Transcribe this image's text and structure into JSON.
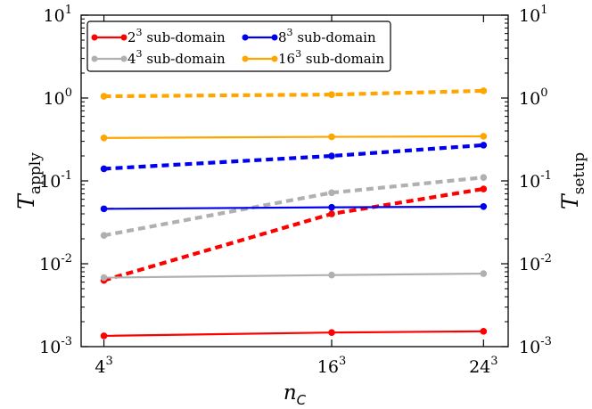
{
  "chart_data": {
    "type": "line",
    "x_categories": [
      "4",
      "16",
      "24"
    ],
    "x_values": [
      4,
      16,
      24
    ],
    "x_exponent": "3",
    "xlabel": {
      "base": "n",
      "subscript": "C"
    },
    "ylabel_left": {
      "base": "T",
      "subscript": "apply"
    },
    "ylabel_right": {
      "base": "T",
      "subscript": "setup"
    },
    "yscale": "log",
    "ylim": [
      0.001,
      10
    ],
    "y_ticks": [
      {
        "base": "10",
        "exp": "1"
      },
      {
        "base": "10",
        "exp": "0"
      },
      {
        "base": "10",
        "exp": "-1"
      },
      {
        "base": "10",
        "exp": "-2"
      },
      {
        "base": "10",
        "exp": "-3"
      }
    ],
    "legend_position": "top-left",
    "series": [
      {
        "name": "2³ sub-domain",
        "label_base": "2",
        "label_exp": "3",
        "label_rest": " sub-domain",
        "color": "#ff0000",
        "apply": [
          0.00135,
          0.00148,
          0.00153
        ],
        "setup": [
          0.0063,
          0.04,
          0.08
        ]
      },
      {
        "name": "4³ sub-domain",
        "label_base": "4",
        "label_exp": "3",
        "label_rest": " sub-domain",
        "color": "#b0b0b0",
        "apply": [
          0.0068,
          0.0073,
          0.0076
        ],
        "setup": [
          0.022,
          0.072,
          0.11
        ]
      },
      {
        "name": "8³ sub-domain",
        "label_base": "8",
        "label_exp": "3",
        "label_rest": " sub-domain",
        "color": "#0000ee",
        "apply": [
          0.046,
          0.048,
          0.049
        ],
        "setup": [
          0.14,
          0.2,
          0.27
        ]
      },
      {
        "name": "16³ sub-domain",
        "label_base": "16",
        "label_exp": "3",
        "label_rest": " sub-domain",
        "color": "#ffa500",
        "apply": [
          0.33,
          0.34,
          0.345
        ],
        "setup": [
          1.05,
          1.1,
          1.22
        ]
      }
    ]
  }
}
